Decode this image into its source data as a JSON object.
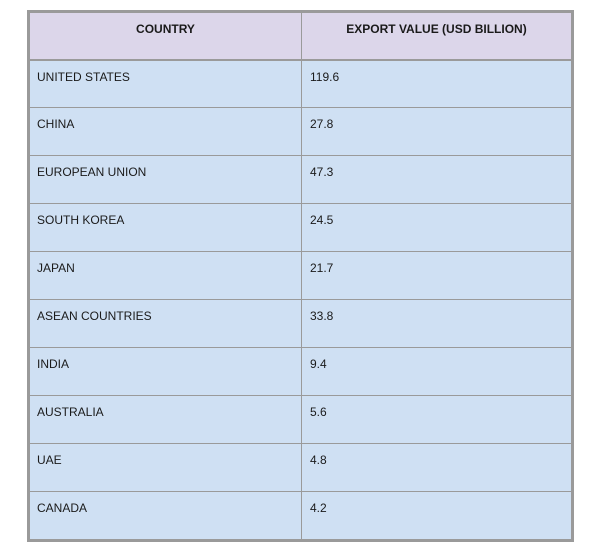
{
  "chart_data": {
    "type": "table",
    "columns": [
      "COUNTRY",
      "EXPORT VALUE (USD BILLION)"
    ],
    "rows": [
      {
        "country": "UNITED STATES",
        "value": "119.6"
      },
      {
        "country": "CHINA",
        "value": "27.8"
      },
      {
        "country": "EUROPEAN UNION",
        "value": "47.3"
      },
      {
        "country": "SOUTH KOREA",
        "value": "24.5"
      },
      {
        "country": "JAPAN",
        "value": "21.7"
      },
      {
        "country": "ASEAN COUNTRIES",
        "value": "33.8"
      },
      {
        "country": "INDIA",
        "value": "9.4"
      },
      {
        "country": "AUSTRALIA",
        "value": "5.6"
      },
      {
        "country": "UAE",
        "value": "4.8"
      },
      {
        "country": "CANADA",
        "value": "4.2"
      }
    ]
  },
  "colors": {
    "header_bg": "#dcd6ea",
    "row_bg": "#cfe0f3",
    "border": "#9a9a9a"
  }
}
